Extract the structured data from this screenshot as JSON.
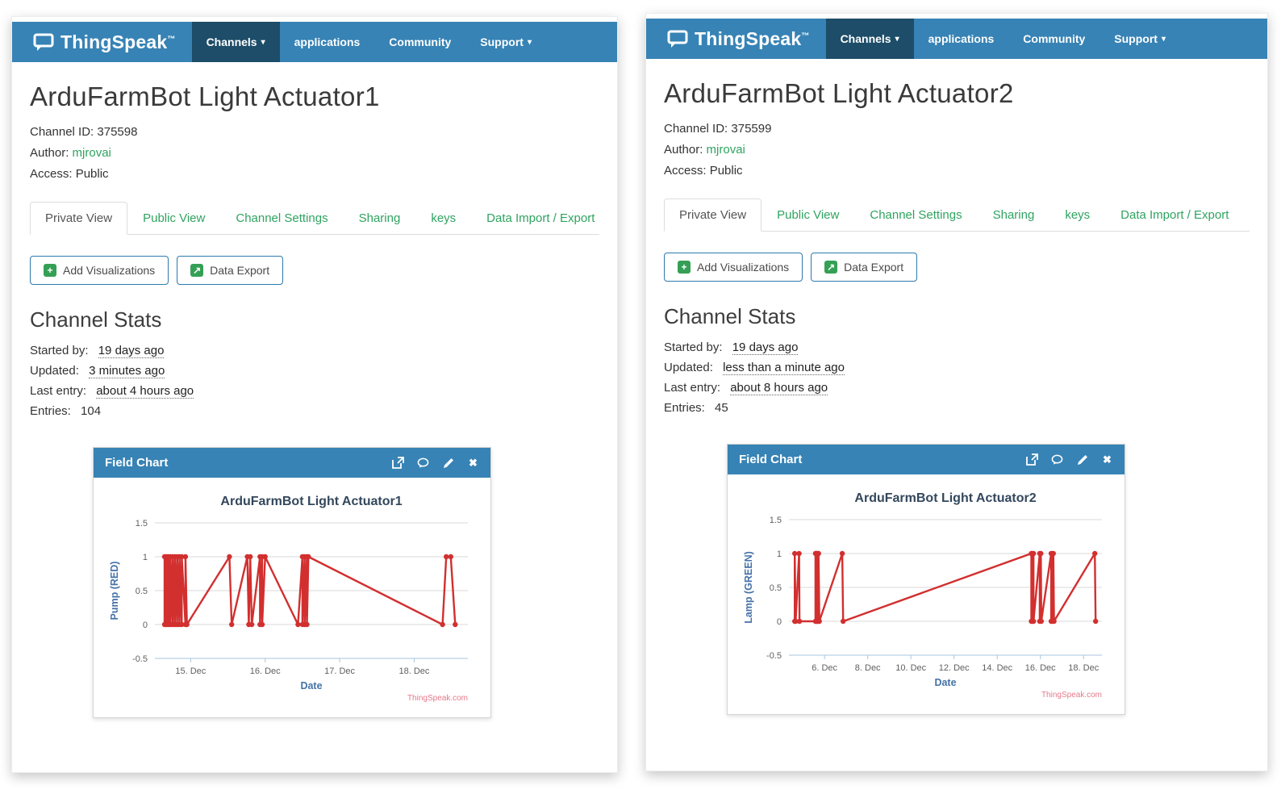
{
  "shared": {
    "brand": "ThingSpeak",
    "brand_tm": "™",
    "nav": {
      "channels": "Channels",
      "applications": "applications",
      "community": "Community",
      "support": "Support",
      "caret": "▾"
    },
    "tabs": [
      {
        "label": "Private View",
        "active": true
      },
      {
        "label": "Public View",
        "active": false
      },
      {
        "label": "Channel Settings",
        "active": false
      },
      {
        "label": "Sharing",
        "active": false
      },
      {
        "label": "keys",
        "active": false
      },
      {
        "label": "Data Import / Export",
        "active": false
      }
    ],
    "buttons": {
      "add_visualizations": "Add Visualizations",
      "add_icon_glyph": "+",
      "data_export": "Data Export",
      "export_icon_glyph": "↗"
    },
    "meta_labels": {
      "channel_id": "Channel ID:",
      "author": "Author:",
      "access": "Access:"
    },
    "stats_labels": {
      "heading": "Channel Stats",
      "started": "Started by:",
      "updated": "Updated:",
      "last_entry": "Last entry:",
      "entries": "Entries:"
    },
    "card_title": "Field Chart",
    "card_icons": [
      "popout-icon",
      "comment-icon",
      "edit-icon",
      "close-icon"
    ],
    "close_glyph": "✖",
    "colors": {
      "navbar": "#3783b5",
      "navbar_active": "#1d4d68",
      "green_link": "#2fa360",
      "button_border": "#2e79ad",
      "chart_line": "#d22f2f",
      "card_header": "#3783b5"
    }
  },
  "panels": [
    {
      "title": "ArduFarmBot Light Actuator1",
      "channel_id": "375598",
      "author": "mjrovai",
      "access": "Public",
      "started": "19 days ago",
      "updated": "3 minutes ago",
      "last_entry": "about 4 hours ago",
      "entries": "104"
    },
    {
      "title": "ArduFarmBot Light Actuator2",
      "channel_id": "375599",
      "author": "mjrovai",
      "access": "Public",
      "started": "19 days ago",
      "updated": "less than a minute ago",
      "last_entry": "about 8 hours ago",
      "entries": "45"
    }
  ],
  "chart_data": [
    {
      "type": "line",
      "title": "ArduFarmBot Light Actuator1",
      "xlabel": "Date",
      "ylabel": "Pump (RED)",
      "ylim": [
        -0.5,
        1.5
      ],
      "yticks": [
        1.5,
        1,
        0.5,
        0,
        -0.5
      ],
      "ytick_labels": [
        "1.5",
        "1",
        "0.5",
        "0",
        "-0.5"
      ],
      "xlim": [
        14.52,
        18.72
      ],
      "xticks": [
        15,
        16,
        17,
        18
      ],
      "xtick_labels": [
        "15. Dec",
        "16. Dec",
        "17. Dec",
        "18. Dec"
      ],
      "grid": true,
      "legend": false,
      "line_color": "#d22f2f",
      "credit": "ThingSpeak.com",
      "points": [
        [
          14.65,
          0
        ],
        [
          14.65,
          1
        ],
        [
          14.67,
          0
        ],
        [
          14.67,
          1
        ],
        [
          14.69,
          0
        ],
        [
          14.69,
          1
        ],
        [
          14.71,
          0
        ],
        [
          14.71,
          1
        ],
        [
          14.73,
          0
        ],
        [
          14.73,
          1
        ],
        [
          14.76,
          0
        ],
        [
          14.76,
          1
        ],
        [
          14.79,
          0
        ],
        [
          14.79,
          1
        ],
        [
          14.82,
          0
        ],
        [
          14.82,
          1
        ],
        [
          14.85,
          0
        ],
        [
          14.85,
          1
        ],
        [
          14.88,
          0
        ],
        [
          14.88,
          1
        ],
        [
          14.93,
          0
        ],
        [
          14.93,
          1
        ],
        [
          14.95,
          0
        ],
        [
          15.52,
          1
        ],
        [
          15.55,
          0
        ],
        [
          15.76,
          1
        ],
        [
          15.78,
          0
        ],
        [
          15.8,
          1
        ],
        [
          15.82,
          0
        ],
        [
          15.93,
          1
        ],
        [
          15.93,
          0
        ],
        [
          15.96,
          1
        ],
        [
          15.96,
          0
        ],
        [
          16.0,
          1
        ],
        [
          16.44,
          0
        ],
        [
          16.5,
          1
        ],
        [
          16.5,
          0
        ],
        [
          16.53,
          1
        ],
        [
          16.53,
          0
        ],
        [
          16.56,
          1
        ],
        [
          16.56,
          0
        ],
        [
          16.58,
          1
        ],
        [
          18.38,
          0
        ],
        [
          18.43,
          1
        ],
        [
          18.49,
          1
        ],
        [
          18.55,
          0
        ]
      ]
    },
    {
      "type": "line",
      "title": "ArduFarmBot Light Actuator2",
      "xlabel": "Date",
      "ylabel": "Lamp (GREEN)",
      "ylim": [
        -0.5,
        1.5
      ],
      "yticks": [
        1.5,
        1,
        0.5,
        0,
        -0.5
      ],
      "ytick_labels": [
        "1.5",
        "1",
        "0.5",
        "0",
        "-0.5"
      ],
      "xlim": [
        4.35,
        18.85
      ],
      "xticks": [
        6,
        8,
        10,
        12,
        14,
        16,
        18
      ],
      "xtick_labels": [
        "6. Dec",
        "8. Dec",
        "10. Dec",
        "12. Dec",
        "14. Dec",
        "16. Dec",
        "18. Dec"
      ],
      "grid": true,
      "legend": false,
      "line_color": "#d22f2f",
      "credit": "ThingSpeak.com",
      "points": [
        [
          4.62,
          0
        ],
        [
          4.62,
          1
        ],
        [
          4.66,
          0
        ],
        [
          4.82,
          1
        ],
        [
          4.84,
          0
        ],
        [
          5.58,
          0
        ],
        [
          5.58,
          1
        ],
        [
          5.61,
          0
        ],
        [
          5.61,
          1
        ],
        [
          5.64,
          0
        ],
        [
          5.64,
          1
        ],
        [
          5.68,
          0
        ],
        [
          5.68,
          1
        ],
        [
          5.72,
          0
        ],
        [
          5.72,
          1
        ],
        [
          5.76,
          0
        ],
        [
          6.82,
          1
        ],
        [
          6.86,
          0
        ],
        [
          15.58,
          1
        ],
        [
          15.58,
          0
        ],
        [
          15.63,
          1
        ],
        [
          15.63,
          0
        ],
        [
          15.68,
          1
        ],
        [
          15.68,
          0
        ],
        [
          15.97,
          1
        ],
        [
          15.97,
          0
        ],
        [
          16.02,
          1
        ],
        [
          16.04,
          0
        ],
        [
          16.5,
          1
        ],
        [
          16.5,
          0
        ],
        [
          16.55,
          1
        ],
        [
          16.55,
          0
        ],
        [
          16.6,
          1
        ],
        [
          16.63,
          0
        ],
        [
          18.52,
          1
        ],
        [
          18.56,
          0
        ]
      ]
    }
  ]
}
